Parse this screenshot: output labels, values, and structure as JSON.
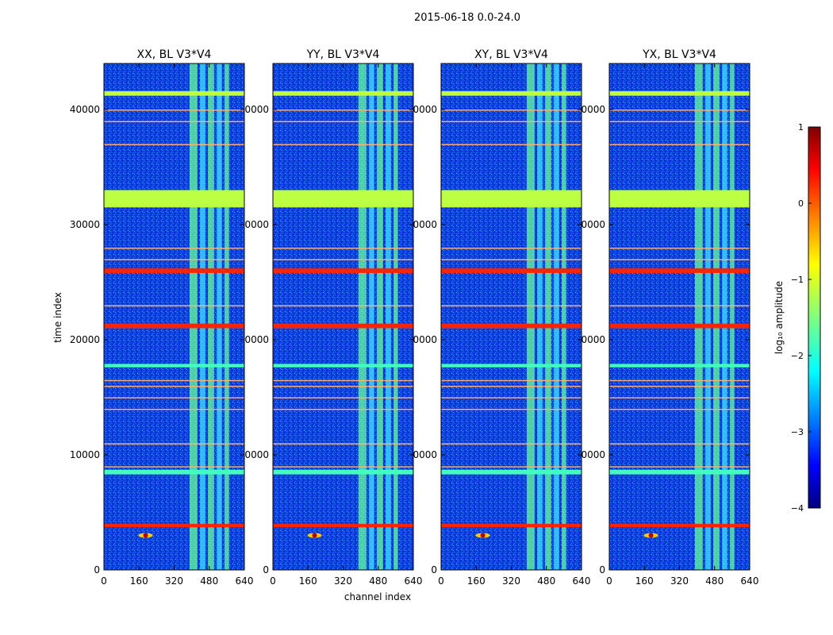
{
  "figure_title": "2015-06-18 0.0-24.0",
  "chart_data": {
    "type": "heatmap",
    "suptitle": "2015-06-18 0.0-24.0",
    "xlabel": "channel index",
    "ylabel": "time index",
    "xlim": [
      0,
      640
    ],
    "ylim": [
      0,
      44000
    ],
    "xticks": [
      0,
      160,
      320,
      480,
      640
    ],
    "yticks": [
      0,
      10000,
      20000,
      30000,
      40000
    ],
    "xtick_labels": [
      "0",
      "160",
      "320",
      "480",
      "640"
    ],
    "ytick_labels": [
      "0",
      "10000",
      "20000",
      "30000",
      "40000"
    ],
    "panels": [
      {
        "title": "XX, BL V3*V4",
        "ytick_labels": [
          "0",
          "10000",
          "20000",
          "30000",
          "40000"
        ]
      },
      {
        "title": "YY, BL V3*V4",
        "ytick_labels": [
          "0",
          "0000",
          "0000",
          "0000",
          "0000"
        ]
      },
      {
        "title": "XY, BL V3*V4",
        "ytick_labels": [
          "0",
          "0000",
          "0000",
          "0000",
          "0000"
        ]
      },
      {
        "title": "YX, BL V3*V4",
        "ytick_labels": [
          "0",
          "0000",
          "0000",
          "0000",
          "0000"
        ]
      }
    ],
    "colorbar": {
      "label": "log₁₀ amplitude",
      "range": [
        -4,
        1
      ],
      "ticks": [
        1,
        0,
        -1,
        -2,
        -3,
        -4
      ],
      "tick_labels": [
        "1",
        "0",
        "−1",
        "−2",
        "−3",
        "−4"
      ],
      "colormap": "jet"
    },
    "flagged_time_bands": [
      {
        "from": 31500,
        "to": 33000,
        "level": -1.2
      },
      {
        "from": 25800,
        "to": 26200,
        "level": 0.2
      },
      {
        "from": 21000,
        "to": 21400,
        "level": 0.2
      },
      {
        "from": 3700,
        "to": 4000,
        "level": 0.2
      },
      {
        "from": 8300,
        "to": 8700,
        "level": -1.8
      },
      {
        "from": 17600,
        "to": 17900,
        "level": -1.8
      },
      {
        "from": 41200,
        "to": 41600,
        "level": -1.2
      }
    ],
    "rfi_channel_range": [
      390,
      590
    ]
  }
}
